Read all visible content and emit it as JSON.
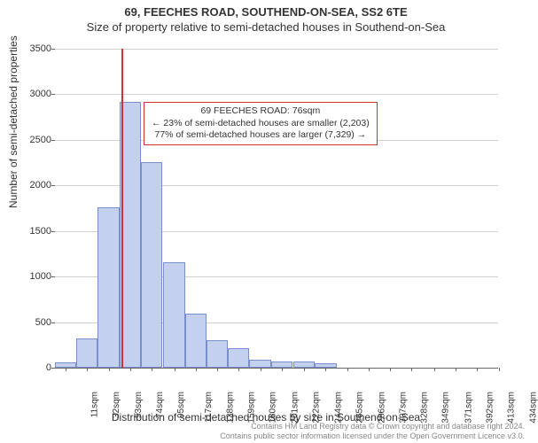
{
  "title": {
    "line1": "69, FEECHES ROAD, SOUTHEND-ON-SEA, SS2 6TE",
    "line2": "Size of property relative to semi-detached houses in Southend-on-Sea"
  },
  "chart": {
    "type": "histogram",
    "ylabel": "Number of semi-detached properties",
    "xlabel": "Distribution of semi-detached houses by size in Southend-on-Sea",
    "ylim": [
      0,
      3500
    ],
    "ytick_step": 500,
    "yticks": [
      0,
      500,
      1000,
      1500,
      2000,
      2500,
      3000,
      3500
    ],
    "xticks": [
      "11sqm",
      "32sqm",
      "53sqm",
      "74sqm",
      "95sqm",
      "117sqm",
      "138sqm",
      "159sqm",
      "180sqm",
      "201sqm",
      "222sqm",
      "244sqm",
      "265sqm",
      "286sqm",
      "307sqm",
      "328sqm",
      "349sqm",
      "371sqm",
      "392sqm",
      "413sqm",
      "434sqm"
    ],
    "bars": [
      {
        "x": 11,
        "value": 60
      },
      {
        "x": 32,
        "value": 320
      },
      {
        "x": 53,
        "value": 1760
      },
      {
        "x": 74,
        "value": 2920
      },
      {
        "x": 95,
        "value": 2260
      },
      {
        "x": 117,
        "value": 1160
      },
      {
        "x": 138,
        "value": 590
      },
      {
        "x": 159,
        "value": 300
      },
      {
        "x": 180,
        "value": 210
      },
      {
        "x": 201,
        "value": 90
      },
      {
        "x": 222,
        "value": 70
      },
      {
        "x": 244,
        "value": 70
      },
      {
        "x": 265,
        "value": 50
      },
      {
        "x": 286,
        "value": 0
      },
      {
        "x": 307,
        "value": 0
      },
      {
        "x": 328,
        "value": 0
      },
      {
        "x": 349,
        "value": 0
      },
      {
        "x": 371,
        "value": 0
      },
      {
        "x": 392,
        "value": 0
      },
      {
        "x": 413,
        "value": 0
      },
      {
        "x": 434,
        "value": 0
      }
    ],
    "bar_color": "#c3d0ee",
    "bar_border": "#7a8fc9",
    "grid_color": "#d0d0d0",
    "background_color": "#ffffff",
    "marker": {
      "x": 76,
      "color": "#cc3333"
    },
    "x_range": [
      11,
      444
    ],
    "bar_width_sqm": 21
  },
  "info_box": {
    "line1": "69 FEECHES ROAD: 76sqm",
    "line2": "← 23% of semi-detached houses are smaller (2,203)",
    "line3": "77% of semi-detached houses are larger (7,329) →"
  },
  "footer": {
    "line1": "Contains HM Land Registry data © Crown copyright and database right 2024.",
    "line2": "Contains public sector information licensed under the Open Government Licence v3.0."
  }
}
